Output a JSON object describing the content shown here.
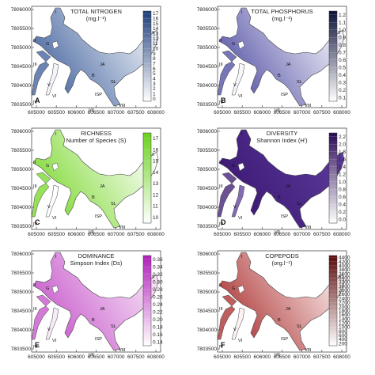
{
  "panels": [
    {
      "id": "A",
      "title_lines": [
        "TOTAL NITROGEN",
        "(mg.l⁻¹)"
      ],
      "colorbar": {
        "ticks": [
          "17",
          "16",
          "15",
          "14",
          "13",
          "12",
          "11",
          "10",
          "9",
          "8",
          "7",
          "6",
          "5",
          "4",
          "3",
          "2",
          "1",
          "0"
        ],
        "low": "#ffffff",
        "high": "#1f3f7a"
      },
      "fill_gradient": [
        "#eef2f8",
        "#3a5b99"
      ]
    },
    {
      "id": "B",
      "title_lines": [
        "TOTAL PHOSPHORUS",
        "(mg.l⁻¹)"
      ],
      "colorbar": {
        "ticks": [
          "1.2",
          "1.1",
          "1.0",
          "0.9",
          "0.8",
          "0.7",
          "0.6",
          "0.5",
          "0.4",
          "0.3",
          "0.2",
          "0.1"
        ],
        "low": "#ffffff",
        "high": "#0d1238"
      },
      "fill_gradient": [
        "#f4f3fa",
        "#4a48a0"
      ]
    },
    {
      "id": "C",
      "title_lines": [
        "RICHNESS",
        "Number of Species (S)"
      ],
      "colorbar": {
        "ticks": [
          "17",
          "16",
          "15",
          "14",
          "13",
          "12",
          "11",
          "10"
        ],
        "low": "#ffffff",
        "high": "#6ad11c"
      },
      "fill_gradient": [
        "#ffffff",
        "#74d622"
      ]
    },
    {
      "id": "D",
      "title_lines": [
        "DIVERSITY",
        "Shannon Index (H')"
      ],
      "colorbar": {
        "ticks": [
          "2.2",
          "2.0",
          "1.8",
          "1.6",
          "1.4",
          "1.2",
          "1.0",
          "0.8",
          "0.6",
          "0.4",
          "0.2",
          "0.0"
        ],
        "low": "#ffffff",
        "high": "#2b0a55"
      },
      "fill_gradient": [
        "#5a3a9a",
        "#3a1570"
      ]
    },
    {
      "id": "E",
      "title_lines": [
        "DOMINANCE",
        "Simpson Index (Ds)"
      ],
      "colorbar": {
        "ticks": [
          "0.36",
          "0.34",
          "0.32",
          "0.30",
          "0.28",
          "0.26",
          "0.24",
          "0.22",
          "0.20",
          "0.18",
          "0.16",
          "0.14"
        ],
        "low": "#ffffff",
        "high": "#b01fb8"
      },
      "fill_gradient": [
        "#f6e3f6",
        "#c44ec8"
      ]
    },
    {
      "id": "F",
      "title_lines": [
        "COPEPODS",
        "(org.l⁻¹)"
      ],
      "colorbar": {
        "ticks": [
          "4400",
          "4200",
          "4000",
          "3800",
          "3600",
          "3400",
          "3200",
          "3000",
          "2800",
          "2600",
          "2400",
          "2200",
          "2000",
          "1800",
          "1600",
          "1400",
          "1200",
          "1000",
          "800",
          "600",
          "400",
          "200"
        ],
        "low": "#ffffff",
        "high": "#5a0808"
      },
      "fill_gradient": [
        "#fbeeee",
        "#a82828"
      ]
    }
  ],
  "x_ticks": [
    "605000",
    "605500",
    "606000",
    "606500",
    "607000",
    "607500",
    "608000"
  ],
  "y_ticks": [
    "7806000",
    "7805500",
    "7805000",
    "7804500",
    "7804000",
    "7803500"
  ],
  "site_labels": {
    "I": "I",
    "II": "II",
    "III": "III",
    "IV": "IV",
    "V": "V",
    "VI": "VI",
    "VII": "VII",
    "VIII": "VIII",
    "IX": "IX",
    "G": "G",
    "JA": "JA",
    "B": "B",
    "SL": "SL",
    "ISP": "ISP"
  }
}
